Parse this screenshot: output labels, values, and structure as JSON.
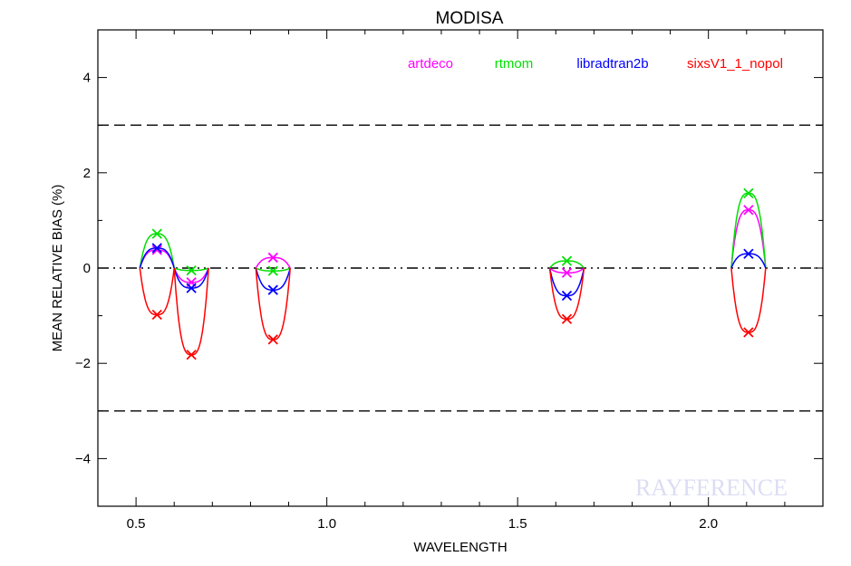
{
  "chart_data": {
    "type": "line",
    "title": "MODISA",
    "xlabel": "WAVELENGTH",
    "ylabel": "MEAN RELATIVE BIAS (%)",
    "xlim": [
      0.4,
      2.3
    ],
    "ylim": [
      -5,
      5
    ],
    "x_ticks": [
      {
        "value": 0.5,
        "label": "0.5"
      },
      {
        "value": 1.0,
        "label": "1.0"
      },
      {
        "value": 1.5,
        "label": "1.5"
      },
      {
        "value": 2.0,
        "label": "2.0"
      }
    ],
    "y_ticks": [
      {
        "value": -4,
        "label": "−4"
      },
      {
        "value": -2,
        "label": "−2"
      },
      {
        "value": 0,
        "label": "0"
      },
      {
        "value": 2,
        "label": "2"
      },
      {
        "value": 4,
        "label": "4"
      }
    ],
    "reference_lines": [
      {
        "y": 3,
        "style": "dashed"
      },
      {
        "y": -3,
        "style": "dashed"
      },
      {
        "y": 0,
        "style": "dash-dot-dot"
      }
    ],
    "legend_placement": "top-right",
    "watermark": "RAYFERENCE",
    "series": [
      {
        "name": "artdeco",
        "color": "#ff00ff",
        "points": [
          [
            0.555,
            0.38
          ],
          [
            0.645,
            -0.3
          ],
          [
            0.859,
            0.22
          ],
          [
            1.629,
            -0.1
          ],
          [
            2.105,
            1.22
          ]
        ]
      },
      {
        "name": "rtmom",
        "color": "#00e000",
        "points": [
          [
            0.555,
            0.72
          ],
          [
            0.645,
            -0.05
          ],
          [
            0.859,
            -0.06
          ],
          [
            1.629,
            0.15
          ],
          [
            2.105,
            1.57
          ]
        ]
      },
      {
        "name": "libradtran2b",
        "color": "#0000ff",
        "points": [
          [
            0.555,
            0.42
          ],
          [
            0.645,
            -0.42
          ],
          [
            0.859,
            -0.46
          ],
          [
            1.629,
            -0.58
          ],
          [
            2.105,
            0.3
          ]
        ]
      },
      {
        "name": "sixsV1_1_nopol",
        "color": "#ff0000",
        "points": [
          [
            0.555,
            -0.98
          ],
          [
            0.645,
            -1.82
          ],
          [
            0.859,
            -1.5
          ],
          [
            1.629,
            -1.07
          ],
          [
            2.105,
            -1.35
          ]
        ]
      }
    ]
  }
}
